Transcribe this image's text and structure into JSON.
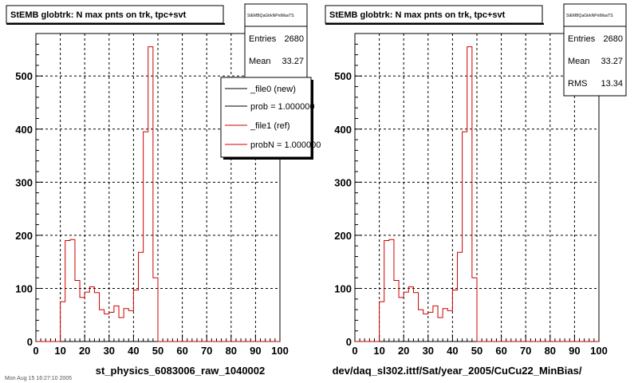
{
  "panels": [
    {
      "title": "StEMB globtrk: N max pnts on trk, tpc+svt",
      "xlabel": "st_physics_6083006_raw_1040002",
      "stats": {
        "name": "StEMBQaGtrkNPntMaxTS",
        "entries_label": "Entries",
        "entries": "2680",
        "mean_label": "Mean",
        "mean": "33.27"
      },
      "legend": [
        {
          "label": "_file0 (new)",
          "color": "#000000"
        },
        {
          "label": "prob = 1.000000",
          "color": "#000000"
        },
        {
          "label": "_file1 (ref)",
          "color": "#cc0000"
        },
        {
          "label": "probN = 1.000000",
          "color": "#cc0000"
        }
      ]
    },
    {
      "title": "StEMB globtrk: N max pnts on trk, tpc+svt",
      "xlabel": "dev/daq_sl302.ittf/Sat/year_2005/CuCu22_MinBias/",
      "stats": {
        "name": "StEMBQaGtrkNPntMaxTS",
        "entries_label": "Entries",
        "entries": "2680",
        "mean_label": "Mean",
        "mean": "33.27",
        "rms_label": "RMS",
        "rms": "13.34"
      }
    }
  ],
  "footer_text": "Mon Aug 15 16:27:10 2005",
  "chart_data": [
    {
      "type": "histogram",
      "title": "StEMB globtrk: N max pnts on trk, tpc+svt",
      "xlabel": "st_physics_6083006_raw_1040002",
      "xlim": [
        0,
        100
      ],
      "ylim": [
        0,
        580
      ],
      "xticks": [
        0,
        10,
        20,
        30,
        40,
        50,
        60,
        70,
        80,
        90,
        100
      ],
      "yticks": [
        0,
        100,
        200,
        300,
        400,
        500
      ],
      "grid": true,
      "bin_width": 2,
      "x": [
        0,
        2,
        4,
        6,
        8,
        10,
        12,
        14,
        16,
        18,
        20,
        22,
        24,
        26,
        28,
        30,
        32,
        34,
        36,
        38,
        40,
        42,
        44,
        46,
        48,
        50,
        52,
        54,
        56,
        58,
        60,
        62,
        64,
        66,
        68,
        70,
        72,
        74,
        76,
        78,
        80,
        82,
        84,
        86,
        88,
        90,
        92,
        94,
        96,
        98
      ],
      "values": [
        0,
        0,
        0,
        0,
        0,
        75,
        190,
        192,
        115,
        83,
        93,
        103,
        92,
        60,
        52,
        55,
        67,
        45,
        62,
        58,
        97,
        168,
        395,
        555,
        120,
        0,
        0,
        0,
        0,
        0,
        0,
        0,
        0,
        0,
        0,
        0,
        0,
        0,
        0,
        0,
        0,
        0,
        0,
        0,
        0,
        0,
        0,
        0,
        0,
        0
      ],
      "series_color": "#cc0000"
    },
    {
      "type": "histogram",
      "title": "StEMB globtrk: N max pnts on trk, tpc+svt",
      "xlabel": "dev/daq_sl302.ittf/Sat/year_2005/CuCu22_MinBias/",
      "xlim": [
        0,
        100
      ],
      "ylim": [
        0,
        580
      ],
      "xticks": [
        0,
        10,
        20,
        30,
        40,
        50,
        60,
        70,
        80,
        90,
        100
      ],
      "yticks": [
        0,
        100,
        200,
        300,
        400,
        500
      ],
      "grid": true,
      "bin_width": 2,
      "x": [
        0,
        2,
        4,
        6,
        8,
        10,
        12,
        14,
        16,
        18,
        20,
        22,
        24,
        26,
        28,
        30,
        32,
        34,
        36,
        38,
        40,
        42,
        44,
        46,
        48,
        50,
        52,
        54,
        56,
        58,
        60,
        62,
        64,
        66,
        68,
        70,
        72,
        74,
        76,
        78,
        80,
        82,
        84,
        86,
        88,
        90,
        92,
        94,
        96,
        98
      ],
      "values": [
        0,
        0,
        0,
        0,
        0,
        75,
        190,
        192,
        115,
        83,
        93,
        103,
        92,
        60,
        52,
        55,
        67,
        45,
        62,
        58,
        97,
        168,
        395,
        555,
        120,
        0,
        0,
        0,
        0,
        0,
        0,
        0,
        0,
        0,
        0,
        0,
        0,
        0,
        0,
        0,
        0,
        0,
        0,
        0,
        0,
        0,
        0,
        0,
        0,
        0
      ],
      "series_color": "#cc0000"
    }
  ]
}
